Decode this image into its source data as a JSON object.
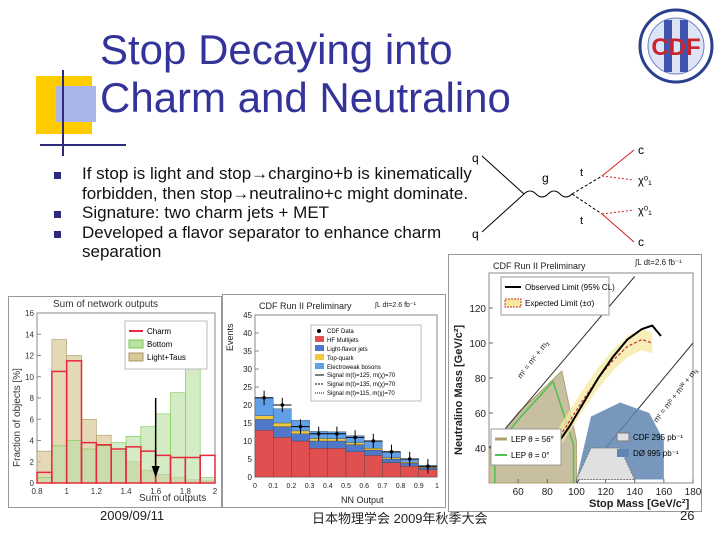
{
  "slide": {
    "title_line1": "Stop Decaying into",
    "title_line2": "Charm and Neutralino",
    "logo_text": "CDF",
    "bullets": [
      "If stop is light and stop→chargino+b is kinematically forbidden, then stop→neutralino+c might dominate.",
      "Signature:  two charm jets + MET",
      "Developed a flavor separator to enhance charm separation"
    ],
    "footer_date": "2009/09/11",
    "footer_center": "日本物理学会 2009年秋季大会",
    "footer_page": "26"
  },
  "diagram": {
    "labels": [
      "q",
      "q",
      "g",
      "c",
      "χ⁰₁",
      "χ⁰₁",
      "c",
      "t",
      "t"
    ]
  },
  "chart_data": [
    {
      "type": "bar",
      "title": "Sum of network outputs",
      "xlabel": "Sum of outputs",
      "ylabel": "Fraction of objects [%]",
      "xlim": [
        0.8,
        2.0
      ],
      "ylim": [
        0,
        16
      ],
      "xticks": [
        "0.8",
        "1",
        "1.2",
        "1.4",
        "1.6",
        "1.8",
        "2"
      ],
      "yticks": [
        "0",
        "2",
        "4",
        "6",
        "8",
        "10",
        "12",
        "14",
        "16"
      ],
      "legend": [
        "Charm",
        "Bottom",
        "Light+Taus"
      ],
      "bin_edges": [
        0.8,
        0.9,
        1.0,
        1.1,
        1.2,
        1.3,
        1.4,
        1.5,
        1.6,
        1.7,
        1.8,
        1.9,
        2.0
      ],
      "series": [
        {
          "name": "Charm",
          "values": [
            1.0,
            10.5,
            11.5,
            3.8,
            3.6,
            3.2,
            3.4,
            3.0,
            2.6,
            2.4,
            2.4,
            2.6
          ]
        },
        {
          "name": "Bottom",
          "values": [
            0.5,
            3.5,
            4.0,
            3.2,
            3.5,
            3.8,
            4.4,
            5.3,
            6.5,
            8.5,
            12.0,
            0.5
          ]
        },
        {
          "name": "Light+Taus",
          "values": [
            3.0,
            13.5,
            12.0,
            6.0,
            4.5,
            3.0,
            2.0,
            1.2,
            0.8,
            0.5,
            0.3,
            0.2
          ]
        }
      ]
    },
    {
      "type": "bar",
      "title": "CDF Run II Preliminary",
      "annotation": "∫L dt=2.6 fb⁻¹",
      "xlabel": "NN Output",
      "ylabel": "Events",
      "xlim": [
        0,
        1
      ],
      "ylim": [
        0,
        45
      ],
      "xticks": [
        "0",
        "0.1",
        "0.2",
        "0.3",
        "0.4",
        "0.5",
        "0.6",
        "0.7",
        "0.8",
        "0.9",
        "1"
      ],
      "yticks": [
        "0",
        "5",
        "10",
        "15",
        "20",
        "25",
        "30",
        "35",
        "40",
        "45"
      ],
      "legend": [
        "CDF Data",
        "HF Multijets",
        "Light-flavor jets",
        "Top-quark",
        "Electroweak bosons",
        "Signal m(t)=125, m(χ)=70",
        "Signal m(t)=135, m(χ)=70",
        "Signal m(t)=115, m(χ)=70"
      ],
      "categories": [
        "0.05",
        "0.15",
        "0.25",
        "0.35",
        "0.45",
        "0.55",
        "0.65",
        "0.75",
        "0.85",
        "0.95"
      ],
      "data": [
        22,
        20,
        14,
        12,
        12,
        11,
        10,
        7,
        5,
        3
      ],
      "stack": [
        {
          "name": "HF Multijets",
          "values": [
            13,
            11,
            10,
            8,
            8,
            7,
            6,
            4,
            3,
            2
          ]
        },
        {
          "name": "Light-flavor jets",
          "values": [
            3,
            3,
            2,
            2,
            2,
            2,
            1.5,
            1,
            0.8,
            0.5
          ]
        },
        {
          "name": "Top-quark",
          "values": [
            1,
            1,
            0.8,
            0.7,
            0.6,
            0.5,
            0.5,
            0.4,
            0.3,
            0.2
          ]
        },
        {
          "name": "Electroweak bosons",
          "values": [
            5,
            4,
            3,
            2,
            2,
            2,
            2,
            1.5,
            1,
            0.5
          ]
        }
      ]
    },
    {
      "type": "area",
      "title": "CDF Run II Preliminary",
      "annotation": "∫L dt=2.6 fb⁻¹",
      "xlabel": "Stop Mass [GeV/c²]",
      "ylabel": "Neutralino Mass [GeV/c²]",
      "xlim": [
        40,
        180
      ],
      "ylim": [
        20,
        140
      ],
      "xticks": [
        "60",
        "80",
        "100",
        "120",
        "140",
        "160",
        "180"
      ],
      "yticks": [
        "40",
        "60",
        "80",
        "100",
        "120"
      ],
      "legend": [
        "Observed Limit (95% CL)",
        "Expected Limit (±σ)",
        "LEP θ = 56°",
        "LEP θ = 0°",
        "CDF 295 pb⁻¹",
        "DØ 995 pb⁻¹"
      ],
      "annotations": [
        "mᵗ = mᶜ + mᵪ",
        "mᵗ = mᵇ + mᵂ + mᵪ"
      ],
      "observed": {
        "x": [
          85,
          95,
          105,
          115,
          125,
          135,
          145,
          152,
          158
        ],
        "y": [
          40,
          52,
          66,
          80,
          92,
          102,
          108,
          110,
          104
        ]
      },
      "expected": {
        "x": [
          85,
          95,
          105,
          115,
          125,
          135,
          145,
          152
        ],
        "y": [
          42,
          55,
          68,
          80,
          90,
          98,
          102,
          100
        ]
      }
    }
  ],
  "colors": {
    "title": "#333399",
    "bullet": "#2b2b7a",
    "charm": "#e8283c",
    "bottom": "#78c850",
    "light": "#c8b888",
    "hf": "#e05050",
    "lf": "#5078c8",
    "top": "#f0c840",
    "ew": "#60a0e8"
  }
}
